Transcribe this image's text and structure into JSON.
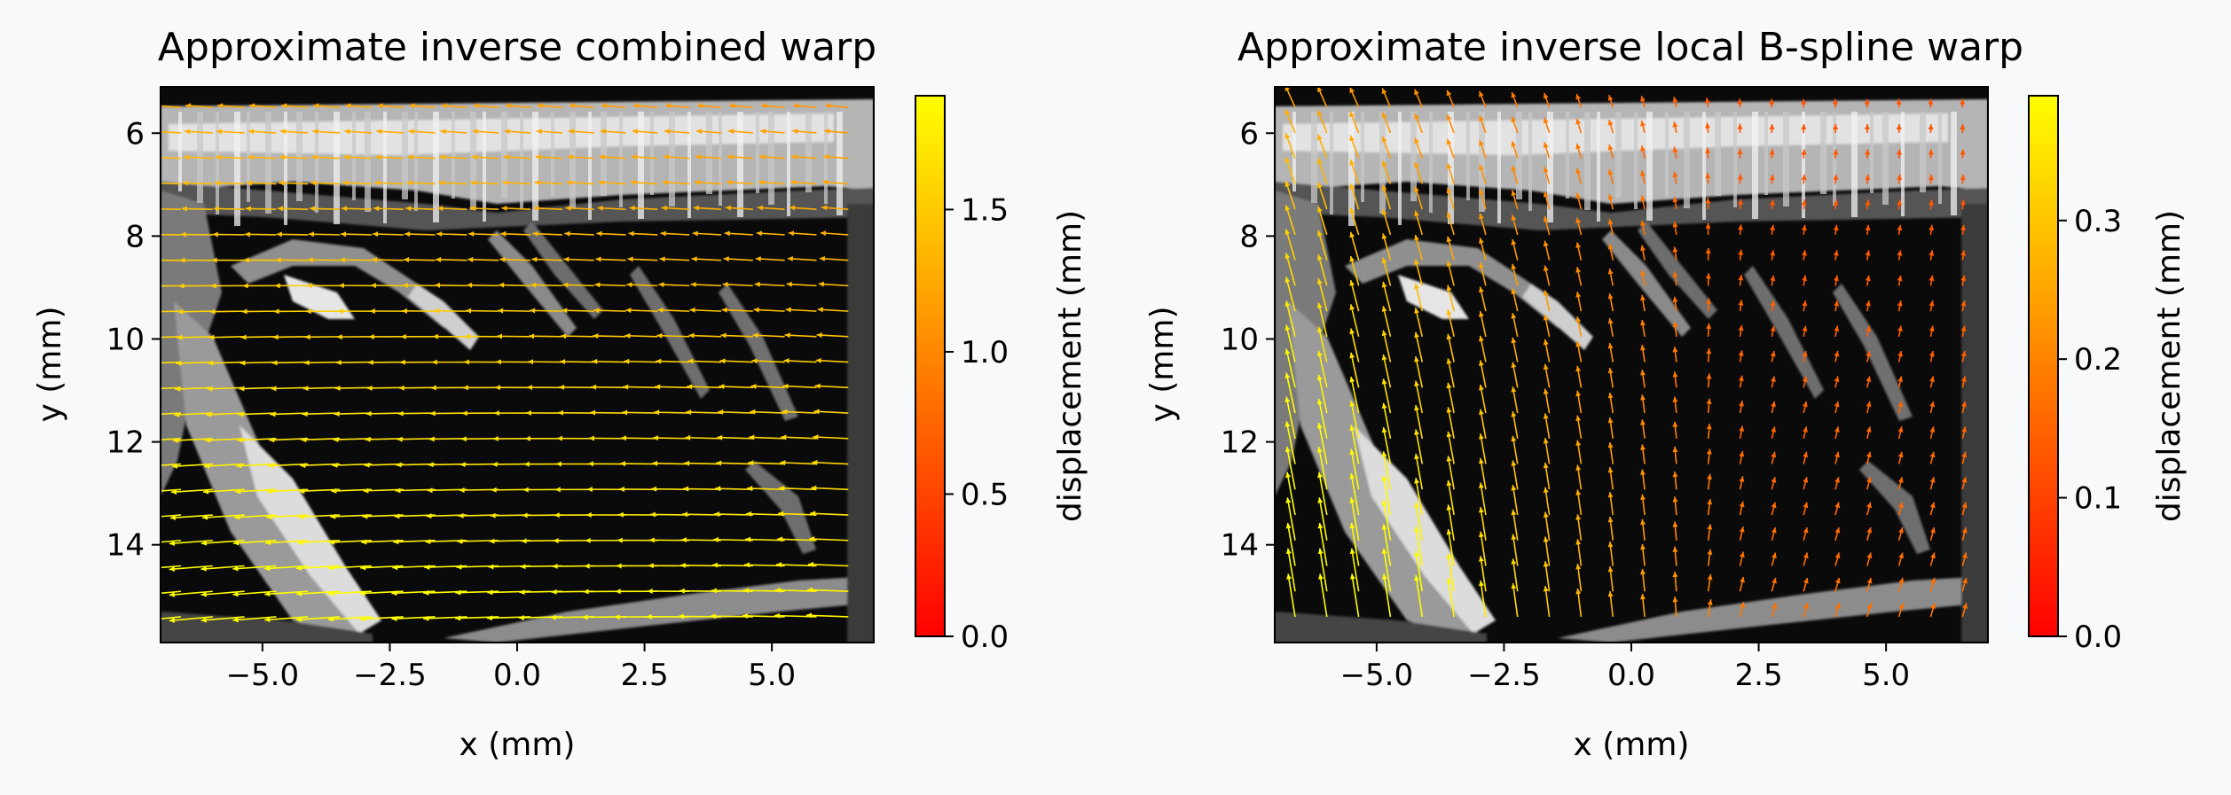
{
  "colors": {
    "background": "#f8f9fb",
    "colormap": [
      "#ff0000",
      "#ff5500",
      "#ffaa00",
      "#ffff00"
    ],
    "image": "grayscale"
  },
  "chart_data": [
    {
      "type": "heatmap",
      "overlay": "quiver",
      "title": "Approximate inverse combined warp",
      "xlabel": "x (mm)",
      "ylabel": "y (mm)",
      "xlim": [
        -7.0,
        7.0
      ],
      "ylim": [
        15.9,
        5.1
      ],
      "xticks": [
        -5.0,
        -2.5,
        0.0,
        2.5,
        5.0
      ],
      "xtick_labels": [
        "−5.0",
        "−2.5",
        "0.0",
        "2.5",
        "5.0"
      ],
      "yticks": [
        6,
        8,
        10,
        12,
        14
      ],
      "ytick_labels": [
        "6",
        "8",
        "10",
        "12",
        "14"
      ],
      "colorbar": {
        "label": "displacement (mm)",
        "range": [
          0.0,
          1.9
        ],
        "ticks": [
          0.0,
          0.5,
          1.0,
          1.5
        ],
        "tick_labels": [
          "0.0",
          "0.5",
          "1.0",
          "1.5"
        ],
        "cmap": "autumn"
      },
      "vector_field": {
        "x_range": [
          -6.6,
          6.5
        ],
        "y_range": [
          5.5,
          15.4
        ],
        "cols": 22,
        "rows": 21,
        "dominant_direction": "leftward, angled slightly downward on the left",
        "max_displacement": 1.9
      }
    },
    {
      "type": "heatmap",
      "overlay": "quiver",
      "title": "Approximate inverse local B-spline warp",
      "xlabel": "x (mm)",
      "ylabel": "y (mm)",
      "xlim": [
        -7.0,
        7.0
      ],
      "ylim": [
        15.9,
        5.1
      ],
      "xticks": [
        -5.0,
        -2.5,
        0.0,
        2.5,
        5.0
      ],
      "xtick_labels": [
        "−5.0",
        "−2.5",
        "0.0",
        "2.5",
        "5.0"
      ],
      "yticks": [
        6,
        8,
        10,
        12,
        14
      ],
      "ytick_labels": [
        "6",
        "8",
        "10",
        "12",
        "14"
      ],
      "colorbar": {
        "label": "displacement (mm)",
        "range": [
          0.0,
          0.39
        ],
        "ticks": [
          0.0,
          0.1,
          0.2,
          0.3
        ],
        "tick_labels": [
          "0.0",
          "0.1",
          "0.2",
          "0.3"
        ],
        "cmap": "autumn"
      },
      "vector_field": {
        "x_range": [
          -6.6,
          6.5
        ],
        "y_range": [
          5.5,
          15.4
        ],
        "cols": 22,
        "rows": 21,
        "dominant_direction": "upward on the left half, small elsewhere",
        "max_displacement": 0.39
      }
    }
  ]
}
